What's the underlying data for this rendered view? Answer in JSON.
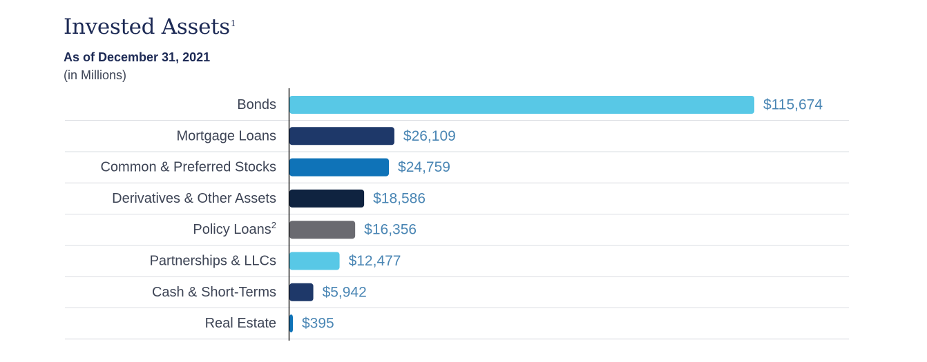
{
  "chart_data": {
    "type": "bar",
    "orientation": "horizontal",
    "title": "Invested Assets",
    "title_footnote": "1",
    "subtitle": "As of December 31, 2021",
    "unit_note": "(in Millions)",
    "grid": "horizontal separators between rows",
    "legend": "none",
    "xlim": [
      0,
      115674
    ],
    "categories": [
      {
        "label": "Bonds",
        "footnote": "",
        "value": 115674,
        "value_label": "$115,674",
        "color": "#58c8e6"
      },
      {
        "label": "Mortgage Loans",
        "footnote": "",
        "value": 26109,
        "value_label": "$26,109",
        "color": "#1e3869"
      },
      {
        "label": "Common & Preferred Stocks",
        "footnote": "",
        "value": 24759,
        "value_label": "$24,759",
        "color": "#0f73b8"
      },
      {
        "label": "Derivatives & Other Assets",
        "footnote": "",
        "value": 18586,
        "value_label": "$18,586",
        "color": "#0f2340"
      },
      {
        "label": "Policy Loans",
        "footnote": "2",
        "value": 16356,
        "value_label": "$16,356",
        "color": "#6a6a70"
      },
      {
        "label": "Partnerships & LLCs",
        "footnote": "",
        "value": 12477,
        "value_label": "$12,477",
        "color": "#58c8e6"
      },
      {
        "label": "Cash & Short-Terms",
        "footnote": "",
        "value": 5942,
        "value_label": "$5,942",
        "color": "#1e3869"
      },
      {
        "label": "Real Estate",
        "footnote": "",
        "value": 395,
        "value_label": "$395",
        "color": "#0f73b8"
      }
    ]
  }
}
